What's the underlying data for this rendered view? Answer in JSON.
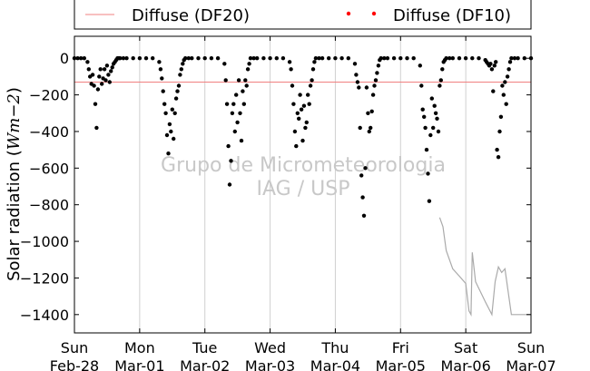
{
  "chart_data": {
    "type": "scatter",
    "title": "",
    "xlabel": "",
    "ylabel": "Solar radiation (Wm−2)",
    "ylabel_parts": {
      "text": "Solar radiation (",
      "math": "Wm−2",
      "close": ")"
    },
    "watermark": [
      "Grupo de Micrometeorologia",
      "IAG / USP"
    ],
    "xlim": [
      0,
      7
    ],
    "ylim": [
      -1500,
      120
    ],
    "yticks": [
      0,
      -200,
      -400,
      -600,
      -800,
      -1000,
      -1200,
      -1400
    ],
    "xticks": [
      {
        "x": 0,
        "day": "Sun",
        "date": "Feb-28"
      },
      {
        "x": 1,
        "day": "Mon",
        "date": "Mar-01"
      },
      {
        "x": 2,
        "day": "Tue",
        "date": "Mar-02"
      },
      {
        "x": 3,
        "day": "Wed",
        "date": "Mar-03"
      },
      {
        "x": 4,
        "day": "Thu",
        "date": "Mar-04"
      },
      {
        "x": 5,
        "day": "Fri",
        "date": "Mar-05"
      },
      {
        "x": 6,
        "day": "Sat",
        "date": "Mar-06"
      },
      {
        "x": 7,
        "day": "Sun",
        "date": "Mar-07"
      }
    ],
    "grid": "vertical",
    "legend_placement": "top",
    "series": [
      {
        "name": "Diffuse (DF20)",
        "kind": "hline",
        "y": -130,
        "color": "#f08080"
      },
      {
        "name": "Diffuse (DF10)",
        "kind": "points",
        "color": "#ff0000",
        "marker_color": "#000000",
        "x": [
          0.0,
          0.05,
          0.1,
          0.15,
          0.2,
          0.22,
          0.24,
          0.26,
          0.28,
          0.3,
          0.32,
          0.34,
          0.36,
          0.38,
          0.4,
          0.42,
          0.44,
          0.46,
          0.48,
          0.5,
          0.52,
          0.54,
          0.56,
          0.58,
          0.6,
          0.62,
          0.64,
          0.66,
          0.68,
          0.7,
          0.75,
          0.8,
          0.9,
          1.0,
          1.1,
          1.2,
          1.3,
          1.32,
          1.34,
          1.36,
          1.38,
          1.4,
          1.42,
          1.44,
          1.46,
          1.48,
          1.5,
          1.52,
          1.54,
          1.56,
          1.58,
          1.6,
          1.62,
          1.64,
          1.66,
          1.68,
          1.7,
          1.75,
          1.8,
          1.9,
          2.0,
          2.1,
          2.2,
          2.3,
          2.32,
          2.34,
          2.36,
          2.38,
          2.4,
          2.42,
          2.44,
          2.46,
          2.48,
          2.5,
          2.52,
          2.54,
          2.56,
          2.58,
          2.6,
          2.62,
          2.64,
          2.66,
          2.68,
          2.7,
          2.75,
          2.8,
          2.9,
          3.0,
          3.1,
          3.2,
          3.3,
          3.32,
          3.34,
          3.36,
          3.38,
          3.4,
          3.42,
          3.44,
          3.46,
          3.48,
          3.5,
          3.52,
          3.54,
          3.56,
          3.58,
          3.6,
          3.62,
          3.64,
          3.66,
          3.68,
          3.7,
          3.75,
          3.8,
          3.9,
          4.0,
          4.1,
          4.2,
          4.3,
          4.32,
          4.34,
          4.36,
          4.38,
          4.4,
          4.42,
          4.44,
          4.46,
          4.48,
          4.5,
          4.52,
          4.54,
          4.56,
          4.58,
          4.6,
          4.62,
          4.64,
          4.66,
          4.68,
          4.7,
          4.75,
          4.8,
          4.9,
          5.0,
          5.1,
          5.2,
          5.3,
          5.32,
          5.34,
          5.36,
          5.38,
          5.4,
          5.42,
          5.44,
          5.46,
          5.48,
          5.5,
          5.52,
          5.54,
          5.56,
          5.58,
          5.6,
          5.62,
          5.64,
          5.66,
          5.68,
          5.7,
          5.75,
          5.8,
          5.9,
          6.0,
          6.1,
          6.2,
          6.3,
          6.32,
          6.34,
          6.36,
          6.38,
          6.4,
          6.42,
          6.44,
          6.46,
          6.48,
          6.5,
          6.52,
          6.54,
          6.56,
          6.58,
          6.6,
          6.62,
          6.64,
          6.66,
          6.68,
          6.7,
          6.75,
          6.8,
          6.9,
          7.0
        ],
        "y": [
          0,
          0,
          0,
          0,
          -20,
          -60,
          -100,
          -140,
          -90,
          -150,
          -250,
          -380,
          -170,
          -100,
          -60,
          -140,
          -110,
          -60,
          -120,
          -40,
          -90,
          -130,
          -70,
          -50,
          -30,
          -20,
          -10,
          0,
          0,
          0,
          0,
          0,
          0,
          0,
          0,
          0,
          -20,
          -60,
          -110,
          -180,
          -250,
          -300,
          -420,
          -520,
          -360,
          -400,
          -280,
          -440,
          -300,
          -220,
          -180,
          -150,
          -90,
          -60,
          -30,
          -10,
          0,
          0,
          0,
          0,
          0,
          0,
          0,
          -30,
          -120,
          -250,
          -480,
          -690,
          -560,
          -300,
          -250,
          -400,
          -200,
          -350,
          -120,
          -300,
          -450,
          -180,
          -250,
          -120,
          -150,
          -60,
          -30,
          0,
          0,
          0,
          0,
          0,
          0,
          0,
          -20,
          -60,
          -150,
          -250,
          -400,
          -480,
          -300,
          -330,
          -200,
          -280,
          -450,
          -260,
          -380,
          -350,
          -200,
          -250,
          -150,
          -120,
          -60,
          -20,
          0,
          0,
          0,
          0,
          0,
          0,
          0,
          -30,
          -90,
          -130,
          -160,
          -380,
          -640,
          -760,
          -860,
          -600,
          -160,
          -300,
          -400,
          -380,
          -290,
          -200,
          -150,
          -120,
          -80,
          -40,
          -10,
          0,
          0,
          0,
          0,
          0,
          0,
          0,
          -40,
          -150,
          -280,
          -320,
          -380,
          -500,
          -630,
          -780,
          -420,
          -220,
          -380,
          -260,
          -300,
          -330,
          -400,
          -150,
          -120,
          -60,
          -20,
          -10,
          0,
          0,
          0,
          0,
          0,
          0,
          0,
          -10,
          -20,
          -30,
          -40,
          -30,
          -60,
          -180,
          -40,
          -20,
          -500,
          -540,
          -400,
          -320,
          -150,
          -200,
          -130,
          -250,
          -100,
          -60,
          -20,
          0,
          0,
          0,
          0,
          0
        ]
      },
      {
        "name": "",
        "kind": "line",
        "color": "#aaaaaa",
        "x": [
          5.6,
          5.65,
          5.7,
          5.8,
          5.9,
          6.0,
          6.05,
          6.08,
          6.1,
          6.15,
          6.3,
          6.4,
          6.45,
          6.5,
          6.55,
          6.6,
          6.7,
          6.75,
          6.8,
          7.0
        ],
        "y": [
          -870,
          -920,
          -1050,
          -1150,
          -1190,
          -1230,
          -1380,
          -1400,
          -1060,
          -1220,
          -1330,
          -1400,
          -1220,
          -1140,
          -1170,
          -1150,
          -1400,
          -1400,
          -1400,
          -1400
        ]
      }
    ]
  }
}
